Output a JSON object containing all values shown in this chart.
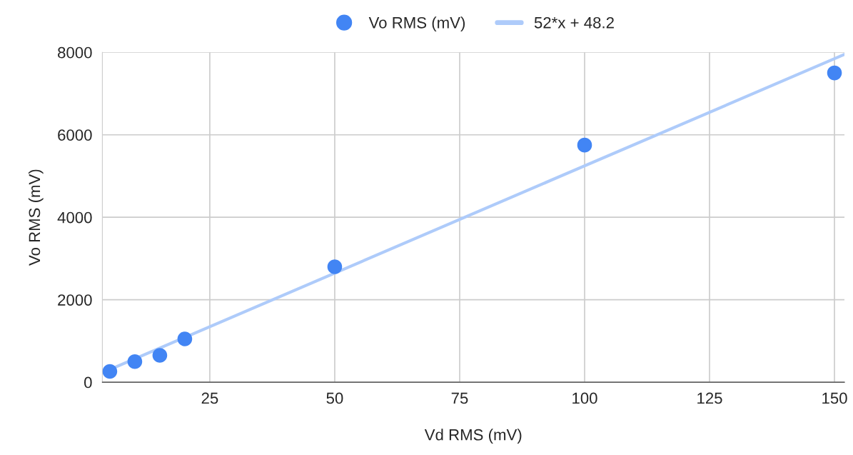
{
  "chart_data": {
    "type": "scatter",
    "xlabel": "Vd RMS (mV)",
    "ylabel": "Vo RMS (mV)",
    "xlim": [
      3.5,
      152
    ],
    "xticks": [
      25,
      50,
      75,
      100,
      125,
      150
    ],
    "ylim": [
      0,
      8000
    ],
    "yticks": [
      0,
      2000,
      4000,
      6000,
      8000
    ],
    "grid": true,
    "legend": "top",
    "series": [
      {
        "name": "Vo RMS (mV)",
        "marker": "circle",
        "color": "#4285f4",
        "x": [
          5,
          10,
          15,
          20,
          50,
          100,
          150
        ],
        "values": [
          260,
          500,
          650,
          1050,
          2800,
          5750,
          7500
        ]
      },
      {
        "name": "52*x + 48.2",
        "type": "line",
        "color": "#aecbfa",
        "x": [
          3.5,
          152
        ],
        "values": [
          230,
          7950
        ]
      }
    ]
  }
}
